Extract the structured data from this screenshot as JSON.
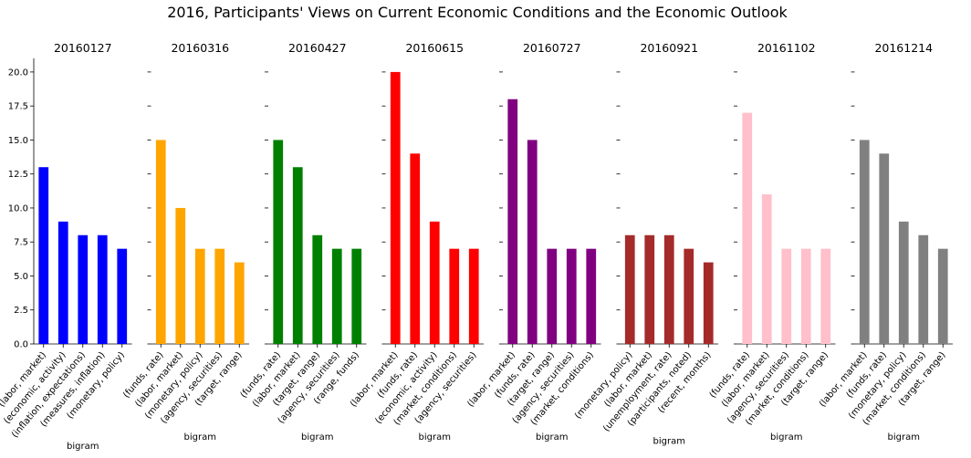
{
  "figure": {
    "suptitle": "2016, Participants' Views on Current Economic Conditions and the Economic Outlook"
  },
  "chart_data": [
    {
      "type": "bar",
      "title": "20160127",
      "xlabel": "bigram",
      "ylabel": "",
      "ylim": [
        0,
        21
      ],
      "color": "#0000ff",
      "categories": [
        "(labor, market)",
        "(economic, activity)",
        "(inflation, expectations)",
        "(measures, inflation)",
        "(monetary, policy)"
      ],
      "values": [
        13,
        9,
        8,
        8,
        7
      ]
    },
    {
      "type": "bar",
      "title": "20160316",
      "xlabel": "bigram",
      "ylabel": "",
      "ylim": [
        0,
        21
      ],
      "color": "#ffa500",
      "categories": [
        "(funds, rate)",
        "(labor, market)",
        "(monetary, policy)",
        "(agency, securities)",
        "(target, range)"
      ],
      "values": [
        15,
        10,
        7,
        7,
        6
      ]
    },
    {
      "type": "bar",
      "title": "20160427",
      "xlabel": "bigram",
      "ylabel": "",
      "ylim": [
        0,
        21
      ],
      "color": "#008000",
      "categories": [
        "(funds, rate)",
        "(labor, market)",
        "(target, range)",
        "(agency, securities)",
        "(range, funds)"
      ],
      "values": [
        15,
        13,
        8,
        7,
        7
      ]
    },
    {
      "type": "bar",
      "title": "20160615",
      "xlabel": "bigram",
      "ylabel": "",
      "ylim": [
        0,
        21
      ],
      "color": "#ff0000",
      "categories": [
        "(labor, market)",
        "(funds, rate)",
        "(economic, activity)",
        "(market, conditions)",
        "(agency, securities)"
      ],
      "values": [
        20,
        14,
        9,
        7,
        7
      ]
    },
    {
      "type": "bar",
      "title": "20160727",
      "xlabel": "bigram",
      "ylabel": "",
      "ylim": [
        0,
        21
      ],
      "color": "#800080",
      "categories": [
        "(labor, market)",
        "(funds, rate)",
        "(target, range)",
        "(agency, securities)",
        "(market, conditions)"
      ],
      "values": [
        18,
        15,
        7,
        7,
        7
      ]
    },
    {
      "type": "bar",
      "title": "20160921",
      "xlabel": "bigram",
      "ylabel": "",
      "ylim": [
        0,
        21
      ],
      "color": "#a52a2a",
      "categories": [
        "(monetary, policy)",
        "(labor, market)",
        "(unemployment, rate)",
        "(participants, noted)",
        "(recent, months)"
      ],
      "values": [
        8,
        8,
        8,
        7,
        6
      ]
    },
    {
      "type": "bar",
      "title": "20161102",
      "xlabel": "bigram",
      "ylabel": "",
      "ylim": [
        0,
        21
      ],
      "color": "#ffc0cb",
      "categories": [
        "(funds, rate)",
        "(labor, market)",
        "(agency, securities)",
        "(market, conditions)",
        "(target, range)"
      ],
      "values": [
        17,
        11,
        7,
        7,
        7
      ]
    },
    {
      "type": "bar",
      "title": "20161214",
      "xlabel": "bigram",
      "ylabel": "",
      "ylim": [
        0,
        21
      ],
      "color": "#808080",
      "categories": [
        "(labor, market)",
        "(funds, rate)",
        "(monetary, policy)",
        "(market, conditions)",
        "(target, range)"
      ],
      "values": [
        15,
        14,
        9,
        8,
        7
      ]
    }
  ],
  "y_axis": {
    "tick_labels": [
      "0.0",
      "2.5",
      "5.0",
      "7.5",
      "10.0",
      "12.5",
      "15.0",
      "17.5",
      "20.0"
    ],
    "tick_values": [
      0,
      2.5,
      5,
      7.5,
      10,
      12.5,
      15,
      17.5,
      20
    ],
    "shared": true
  }
}
